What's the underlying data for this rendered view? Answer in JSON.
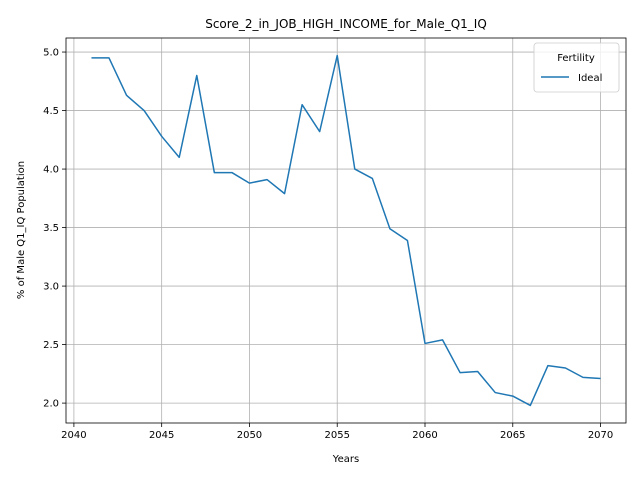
{
  "chart_data": {
    "type": "line",
    "title": "Score_2_in_JOB_HIGH_INCOME_for_Male_Q1_IQ",
    "xlabel": "Years",
    "ylabel": "% of Male Q1_IQ Population",
    "xlim": [
      2039.55,
      2071.45
    ],
    "ylim": [
      1.83,
      5.12
    ],
    "xticks": [
      2040,
      2045,
      2050,
      2055,
      2060,
      2065,
      2070
    ],
    "yticks": [
      2.0,
      2.5,
      3.0,
      3.5,
      4.0,
      4.5,
      5.0
    ],
    "xtick_labels": [
      "2040",
      "2045",
      "2050",
      "2055",
      "2060",
      "2065",
      "2070"
    ],
    "ytick_labels": [
      "2.0",
      "2.5",
      "3.0",
      "3.5",
      "4.0",
      "4.5",
      "5.0"
    ],
    "grid": true,
    "legend": {
      "title": "Fertility",
      "placement": "top-right"
    },
    "series": [
      {
        "name": "Ideal",
        "color": "#1f77b4",
        "x": [
          2041,
          2042,
          2043,
          2044,
          2045,
          2046,
          2047,
          2048,
          2049,
          2050,
          2051,
          2052,
          2053,
          2054,
          2055,
          2056,
          2057,
          2058,
          2059,
          2060,
          2061,
          2062,
          2063,
          2064,
          2065,
          2066,
          2067,
          2068,
          2069,
          2070
        ],
        "y": [
          4.95,
          4.95,
          4.63,
          4.5,
          4.28,
          4.1,
          4.8,
          3.97,
          3.97,
          3.88,
          3.91,
          3.79,
          4.55,
          4.32,
          4.97,
          4.0,
          3.92,
          3.49,
          3.39,
          2.51,
          2.54,
          2.26,
          2.27,
          2.09,
          2.06,
          1.98,
          2.32,
          2.3,
          2.22,
          2.21
        ]
      }
    ]
  }
}
